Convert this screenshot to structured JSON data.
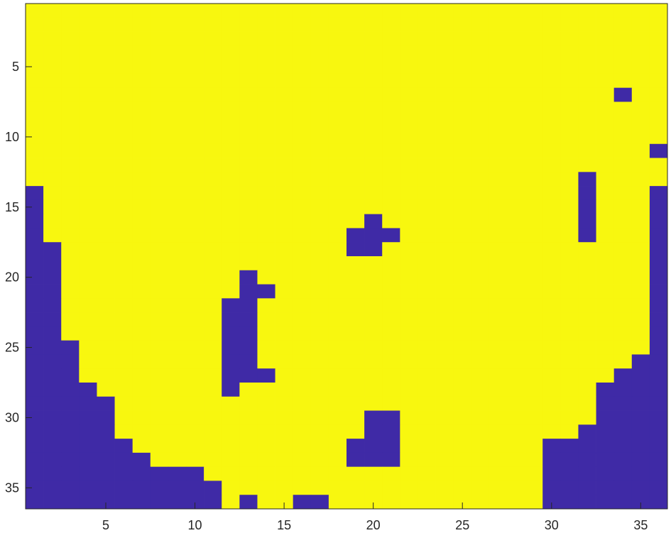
{
  "chart_data": {
    "type": "heatmap",
    "title": "",
    "xlabel": "",
    "ylabel": "",
    "xlim": [
      0.5,
      36.5
    ],
    "ylim": [
      0.5,
      36.5
    ],
    "y_reversed": true,
    "grid": false,
    "colors": {
      "zero": "#3F2AA6",
      "one": "#F8F70F"
    },
    "x_ticks": [
      5,
      10,
      15,
      20,
      25,
      30,
      35
    ],
    "y_ticks": [
      5,
      10,
      15,
      20,
      25,
      30,
      35
    ],
    "rows": 36,
    "cols": 36,
    "grid_binary_rows": [
      "111111111111111111111111111111111111",
      "111111111111111111111111111111111111",
      "111111111111111111111111111111111111",
      "111111111111111111111111111111111111",
      "111111111111111111111111111111111111",
      "111111111111111111111111111111111111",
      "111111111111111111111111111111111011",
      "111111111111111111111111111111111111",
      "111111111111111111111111111111111111",
      "111111111111111111111111111111111111",
      "111111111111111111111111111111111110",
      "111111111111111111111111111111111111",
      "111111111111111111111111111111101111",
      "011111111111111111111111111111101110",
      "011111111111111111111111111111101110",
      "011111111111111111101111111111101110",
      "011111111111111111000111111111101110",
      "001111111111111111001111111111111110",
      "001111111111111111111111111111111110",
      "001111111111011111111111111111111110",
      "001111111111001111111111111111111110",
      "001111111110011111111111111111111110",
      "001111111110011111111111111111111110",
      "001111111110011111111111111111111110",
      "000111111110011111111111111111111110",
      "000111111110011111111111111111111100",
      "000111111110001111111111111111111000",
      "000011111110111111111111111111110000",
      "000001111111111111111111111111110000",
      "000001111111111111100111111111110000",
      "000001111111111111100111111111100000",
      "000000111111111111000111111110000000",
      "000000011111111111000111111110000000",
      "000000000011111111111111111110000000",
      "000000000001111111111111111110000000",
      "000000000001011001111111111110000000"
    ]
  }
}
